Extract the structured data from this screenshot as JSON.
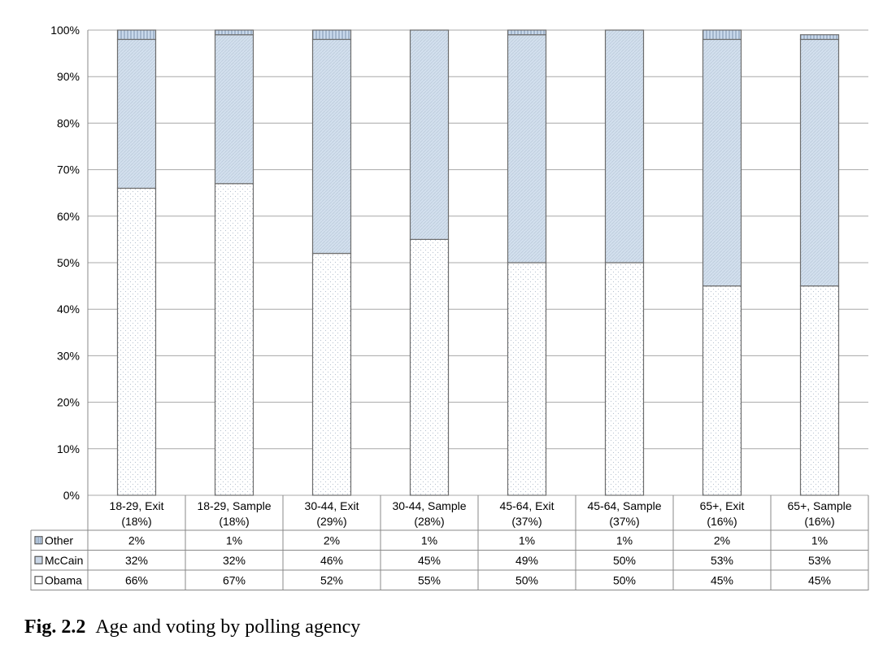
{
  "chart_data": {
    "type": "bar",
    "stacked": true,
    "normalized": true,
    "categories": [
      [
        "18-29, Exit",
        "(18%)"
      ],
      [
        "18-29, Sample",
        "(18%)"
      ],
      [
        "30-44, Exit",
        "(29%)"
      ],
      [
        "30-44, Sample",
        "(28%)"
      ],
      [
        "45-64, Exit",
        "(37%)"
      ],
      [
        "45-64, Sample",
        "(37%)"
      ],
      [
        "65+, Exit",
        "(16%)"
      ],
      [
        "65+, Sample",
        "(16%)"
      ]
    ],
    "series": [
      {
        "name": "Obama",
        "values": [
          66,
          67,
          52,
          55,
          50,
          50,
          45,
          45
        ],
        "labels": [
          "66%",
          "67%",
          "52%",
          "55%",
          "50%",
          "50%",
          "45%",
          "45%"
        ],
        "color": "#ffffff"
      },
      {
        "name": "McCain",
        "values": [
          32,
          32,
          46,
          45,
          49,
          50,
          53,
          53
        ],
        "labels": [
          "32%",
          "32%",
          "46%",
          "45%",
          "49%",
          "50%",
          "53%",
          "53%"
        ],
        "color": "#d3e0ee"
      },
      {
        "name": "Other",
        "values": [
          2,
          1,
          2,
          1,
          1,
          1,
          2,
          1
        ],
        "labels": [
          "2%",
          "1%",
          "2%",
          "1%",
          "1%",
          "1%",
          "2%",
          "1%"
        ],
        "color": "#c5d6ea"
      }
    ],
    "ylim": [
      0,
      100
    ],
    "yticks": [
      "0%",
      "10%",
      "20%",
      "30%",
      "40%",
      "50%",
      "60%",
      "70%",
      "80%",
      "90%",
      "100%"
    ],
    "grid": true,
    "legend": "data-table-left",
    "title": "",
    "xlabel": "",
    "ylabel": ""
  },
  "caption": {
    "number": "Fig. 2.2",
    "text": "Age and voting by polling agency"
  }
}
